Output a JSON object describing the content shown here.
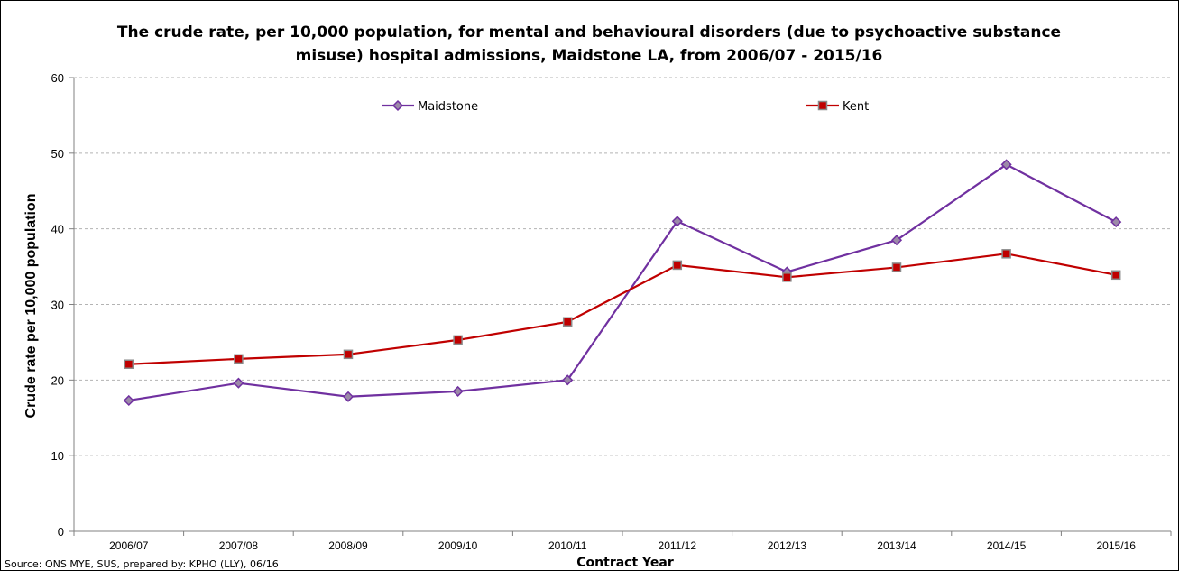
{
  "chart_data": {
    "type": "line",
    "title_line1": "The crude rate, per 10,000 population, for mental and behavioural disorders (due to psychoactive substance",
    "title_line2": "misuse) hospital admissions, Maidstone LA, from 2006/07 - 2015/16",
    "xlabel": "Contract Year",
    "ylabel": "Crude rate per 10,000 population",
    "source": "Source: ONS MYE, SUS, prepared by: KPHO (LLY), 06/16",
    "categories": [
      "2006/07",
      "2007/08",
      "2008/09",
      "2009/10",
      "2010/11",
      "2011/12",
      "2012/13",
      "2013/14",
      "2014/15",
      "2015/16"
    ],
    "ylim": [
      0,
      60
    ],
    "yticks": [
      0,
      10,
      20,
      30,
      40,
      50,
      60
    ],
    "grid": true,
    "legend_position": "top",
    "series": [
      {
        "name": "Maidstone",
        "color": "#7030a0",
        "marker": "diamond",
        "values": [
          17.3,
          19.6,
          17.8,
          18.5,
          20.0,
          41.0,
          34.3,
          38.5,
          48.5,
          40.9
        ]
      },
      {
        "name": "Kent",
        "color": "#c00000",
        "marker": "square",
        "values": [
          22.1,
          22.8,
          23.4,
          25.3,
          27.7,
          35.2,
          33.6,
          34.9,
          36.7,
          33.9
        ]
      }
    ]
  }
}
